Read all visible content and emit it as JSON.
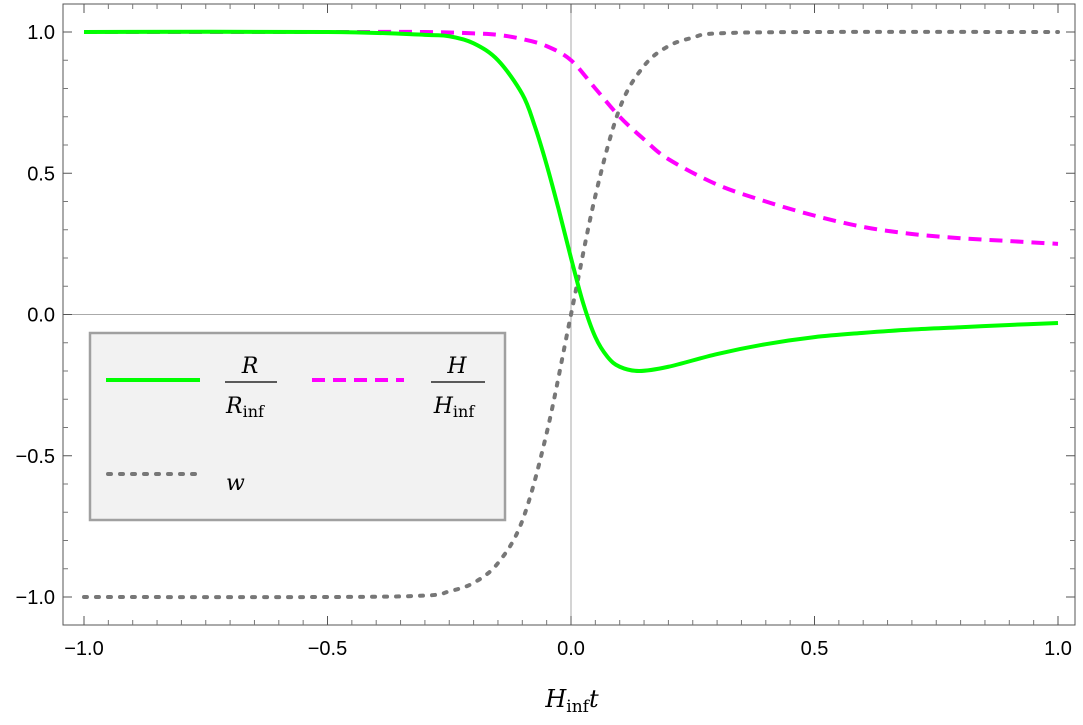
{
  "chart_data": {
    "type": "line",
    "title": "",
    "xlabel": {
      "main": "H",
      "sub": "inf",
      "suffix": "t"
    },
    "ylabel": "",
    "xlim": [
      -1.0,
      1.0
    ],
    "ylim": [
      -1.0,
      1.0
    ],
    "x_ticks": [
      "-1.0",
      "-0.5",
      "0.0",
      "0.5",
      "1.0"
    ],
    "y_ticks": [
      "1.0",
      "0.5",
      "0.0",
      "-0.5",
      "-1.0"
    ],
    "x_tick_values": [
      -1.0,
      -0.5,
      0.0,
      0.5,
      1.0
    ],
    "y_tick_values": [
      1.0,
      0.5,
      0.0,
      -0.5,
      -1.0
    ],
    "grid": false,
    "legend_position": "left-center",
    "legend": [
      {
        "key": "R",
        "num": "R",
        "den": "R",
        "den_sub": "inf"
      },
      {
        "key": "H",
        "num": "H",
        "den": "H",
        "den_sub": "inf"
      },
      {
        "key": "w",
        "label": "w"
      }
    ],
    "series": [
      {
        "key": "R",
        "style": "solid",
        "color": "#00ff00",
        "x": [
          -1.0,
          -0.5,
          -0.3,
          -0.25,
          -0.2,
          -0.15,
          -0.1,
          -0.075,
          -0.05,
          -0.025,
          0.0,
          0.025,
          0.05,
          0.075,
          0.1,
          0.14,
          0.2,
          0.3,
          0.4,
          0.5,
          0.6,
          0.7,
          0.8,
          0.9,
          1.0
        ],
        "y": [
          1.0,
          1.0,
          0.99,
          0.985,
          0.96,
          0.9,
          0.78,
          0.67,
          0.53,
          0.37,
          0.2,
          0.04,
          -0.08,
          -0.15,
          -0.185,
          -0.2,
          -0.185,
          -0.14,
          -0.105,
          -0.08,
          -0.065,
          -0.053,
          -0.045,
          -0.037,
          -0.03
        ]
      },
      {
        "key": "H",
        "style": "dashed",
        "color": "#ff00ff",
        "x": [
          -1.0,
          -0.5,
          -0.3,
          -0.2,
          -0.15,
          -0.1,
          -0.05,
          0.0,
          0.05,
          0.1,
          0.15,
          0.2,
          0.3,
          0.4,
          0.5,
          0.6,
          0.7,
          0.8,
          0.9,
          1.0
        ],
        "y": [
          1.0,
          1.0,
          1.0,
          0.995,
          0.99,
          0.975,
          0.95,
          0.9,
          0.8,
          0.7,
          0.62,
          0.55,
          0.46,
          0.4,
          0.35,
          0.31,
          0.285,
          0.27,
          0.26,
          0.25
        ]
      },
      {
        "key": "w",
        "style": "dotted",
        "color": "#777777",
        "x": [
          -1.0,
          -0.5,
          -0.3,
          -0.25,
          -0.2,
          -0.15,
          -0.1,
          -0.05,
          0.0,
          0.05,
          0.1,
          0.15,
          0.2,
          0.25,
          0.3,
          0.5,
          1.0
        ],
        "y": [
          -1.0,
          -1.0,
          -0.995,
          -0.98,
          -0.95,
          -0.88,
          -0.73,
          -0.42,
          0.0,
          0.42,
          0.73,
          0.88,
          0.95,
          0.98,
          0.995,
          1.0,
          1.0
        ]
      }
    ]
  }
}
